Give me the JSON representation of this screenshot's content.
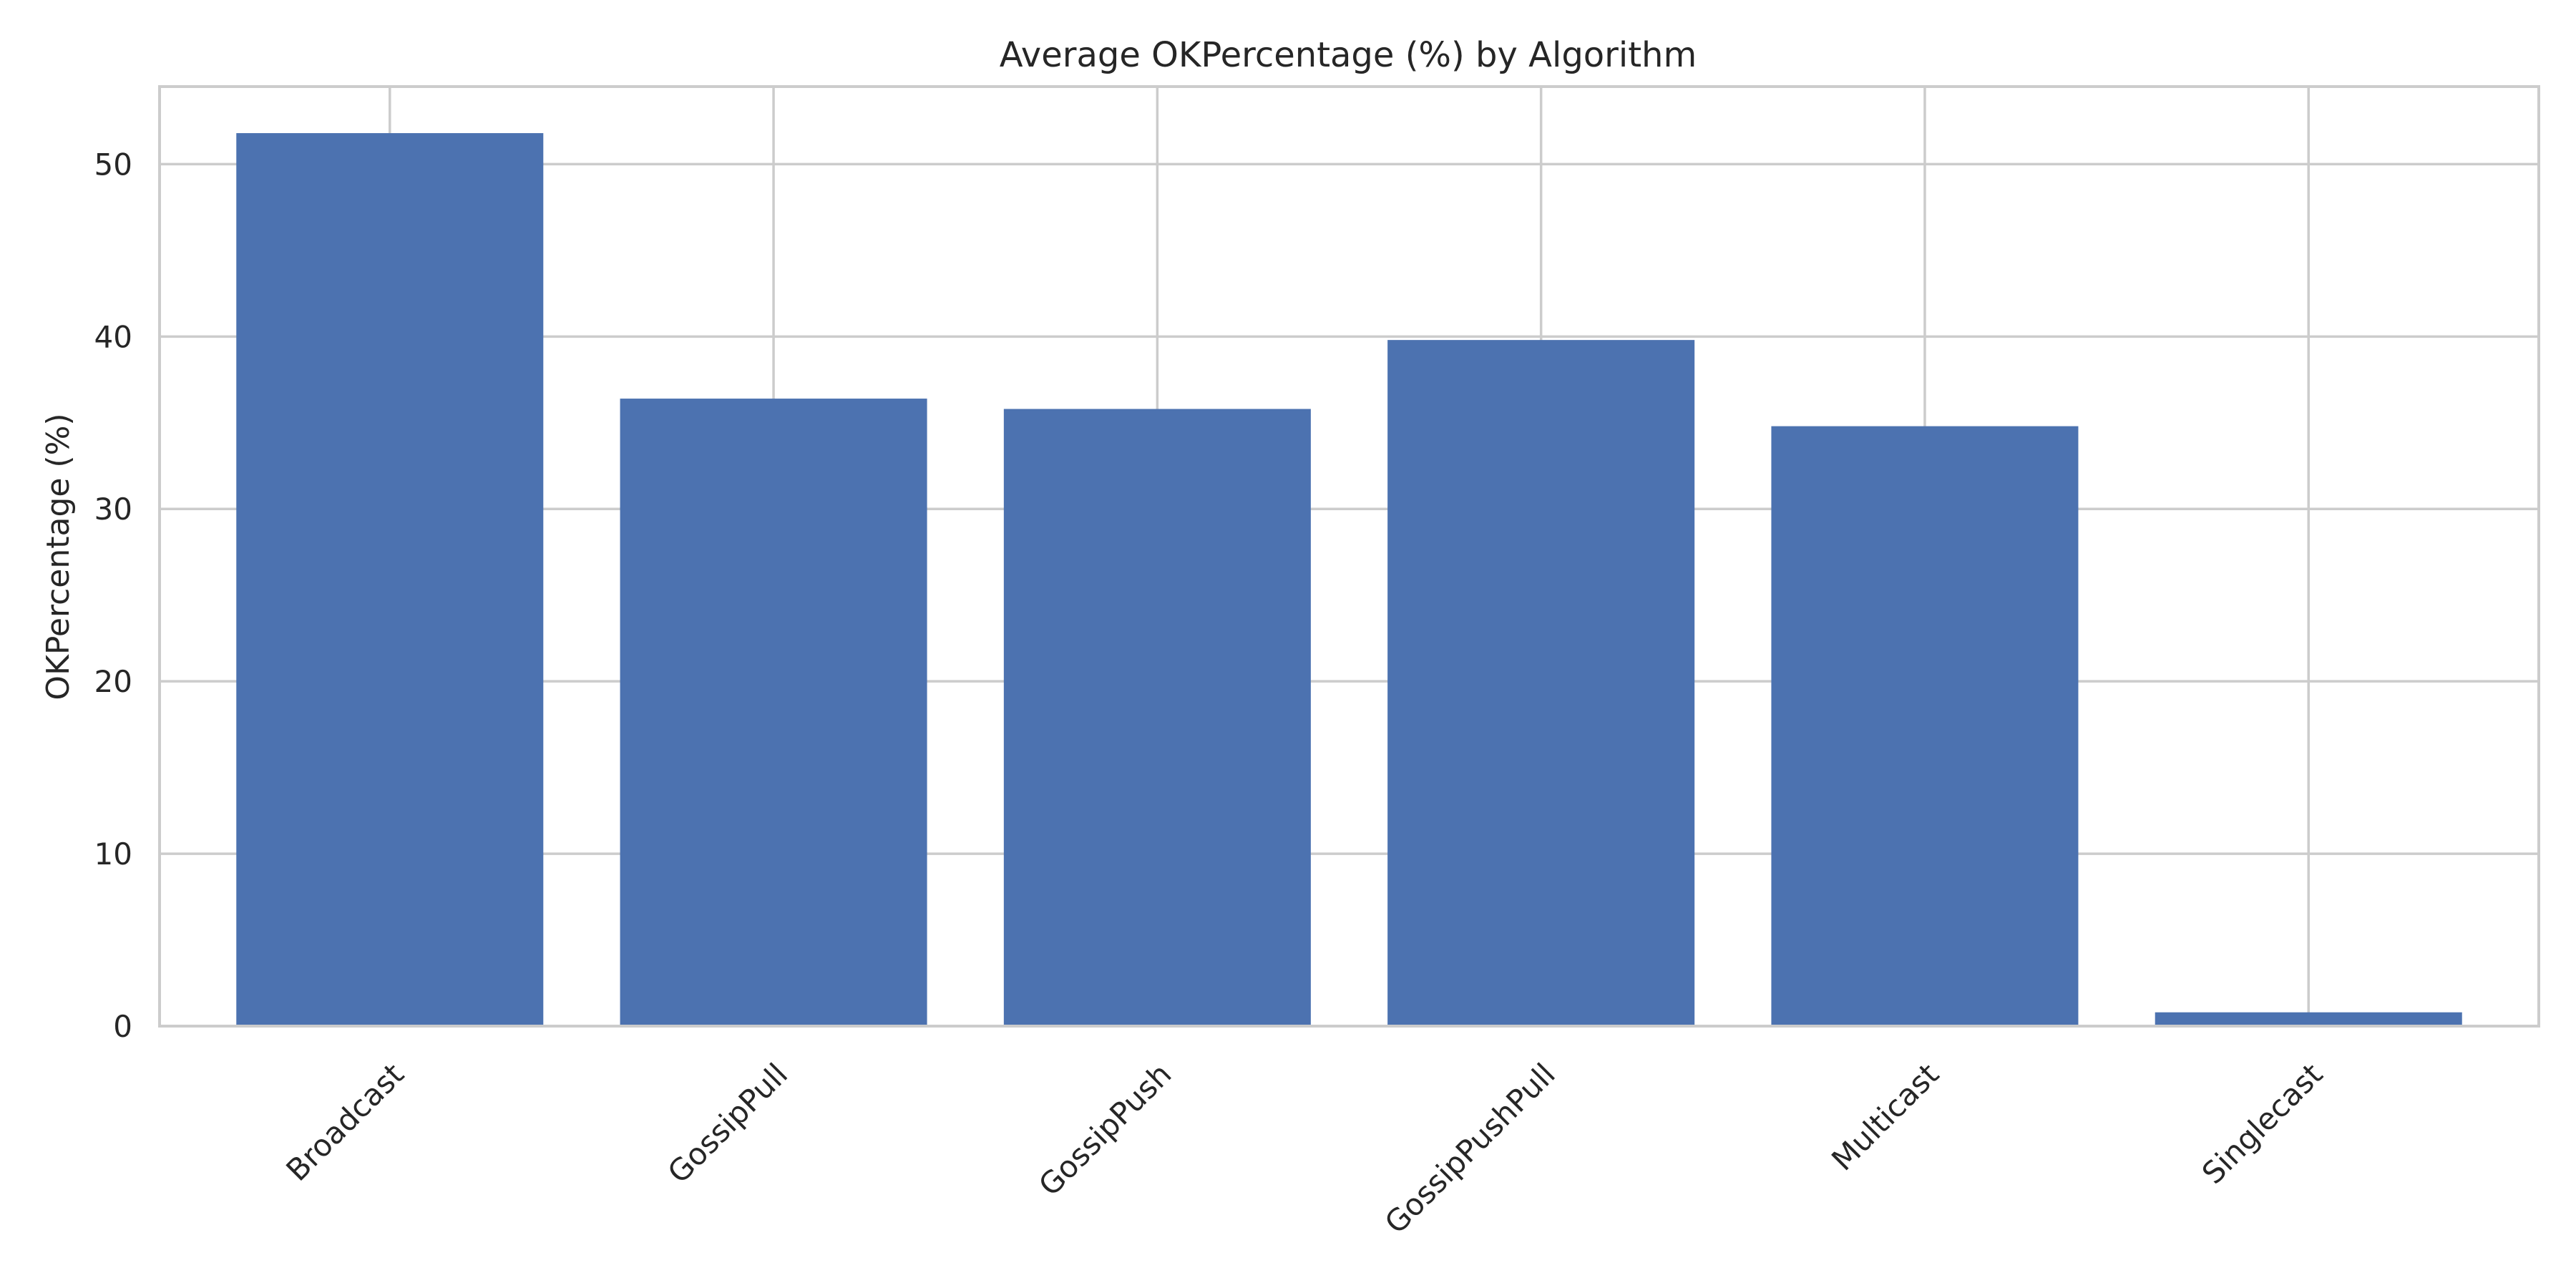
{
  "chart_data": {
    "type": "bar",
    "title": "Average OKPercentage (%) by Algorithm",
    "xlabel": "",
    "ylabel": "OKPercentage (%)",
    "categories": [
      "Broadcast",
      "GossipPull",
      "GossipPush",
      "GossipPushPull",
      "Multicast",
      "Singlecast"
    ],
    "values": [
      51.8,
      36.4,
      35.8,
      39.8,
      34.8,
      0.8
    ],
    "ylim": [
      0,
      54.5
    ],
    "yticks": [
      0,
      10,
      20,
      30,
      40,
      50
    ],
    "ytick_labels": [
      "0",
      "10",
      "20",
      "30",
      "40",
      "50"
    ],
    "grid": true,
    "bar_color": "#4c72b0",
    "grid_color": "#cccccc"
  }
}
